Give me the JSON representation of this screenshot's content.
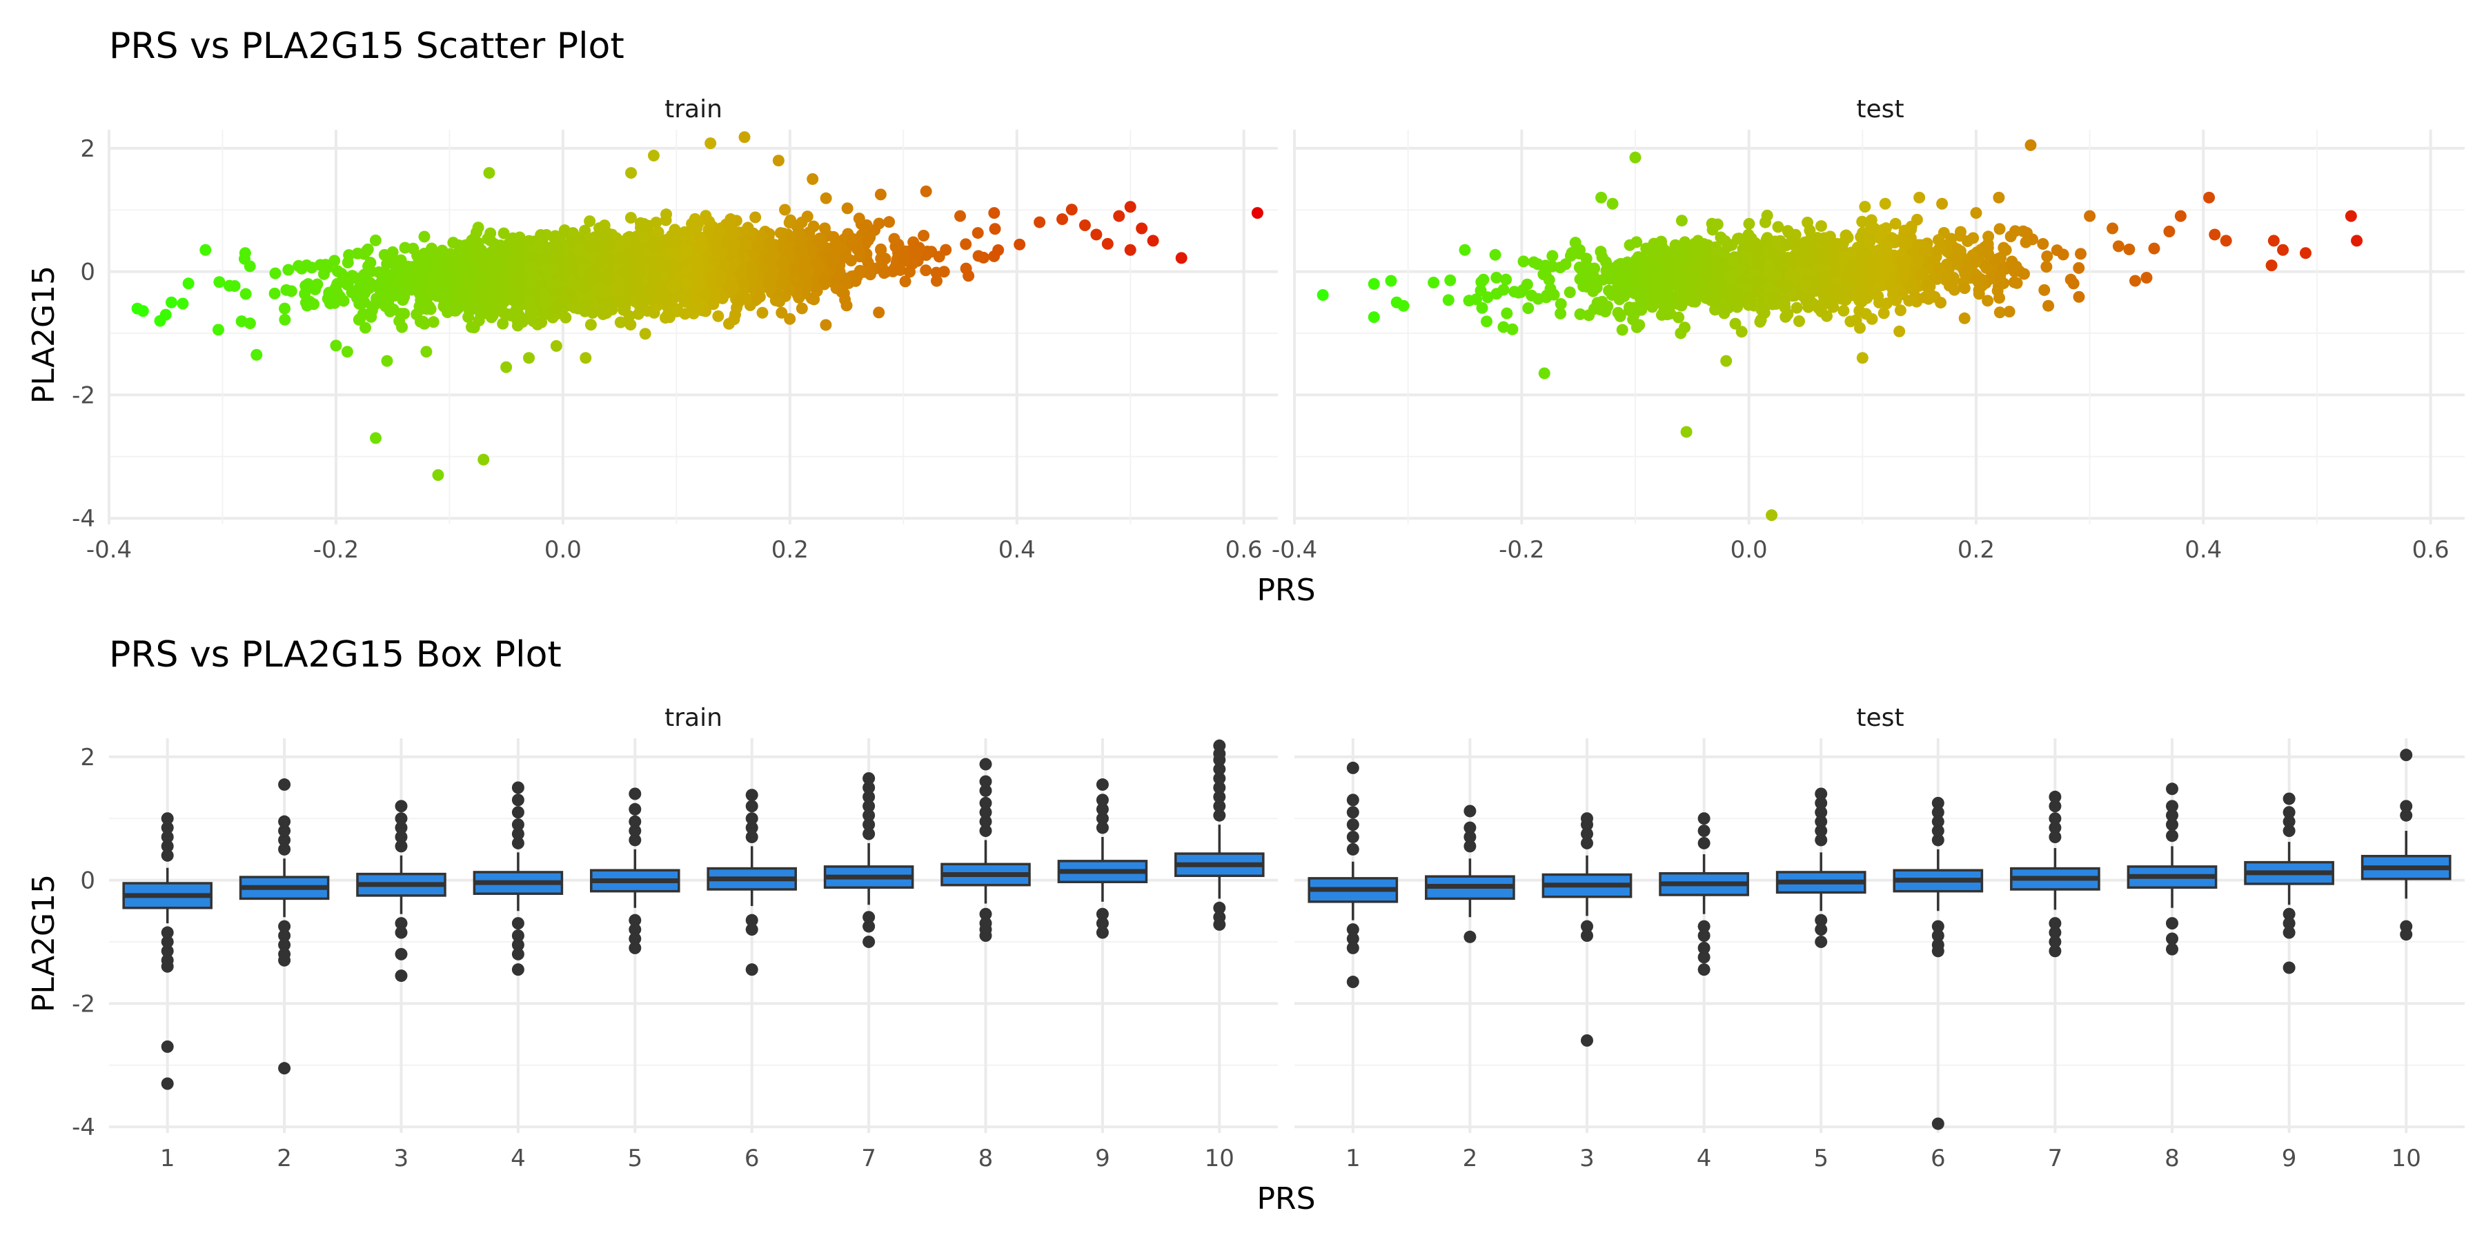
{
  "colors": {
    "grid_major": "#ebebeb",
    "grid_minor": "#f3f3f3",
    "box_fill": "#2b86e2",
    "box_line": "#333333",
    "point_low": "#33ff00",
    "point_mid": "#c8b400",
    "point_high": "#e60000",
    "outlier": "#333333"
  },
  "chart_data": [
    {
      "type": "scatter",
      "title": "PRS vs PLA2G15 Scatter Plot",
      "xlabel": "PRS",
      "ylabel": "PLA2G15",
      "xlim": [
        -0.4,
        0.63
      ],
      "ylim": [
        -4.1,
        2.3
      ],
      "x_ticks": [
        -0.4,
        -0.2,
        0.0,
        0.2,
        0.4,
        0.6
      ],
      "x_tick_labels": [
        "-0.4",
        "-0.2",
        "0.0",
        "0.2",
        "0.4",
        "0.6"
      ],
      "y_ticks": [
        -4,
        -2,
        0,
        2
      ],
      "y_tick_labels": [
        "-4",
        "-2",
        "0",
        "2"
      ],
      "color_scale": {
        "variable": "PRS",
        "low": "#33ff00",
        "mid": "#c8b400",
        "high": "#e60000",
        "range": [
          -0.37,
          0.61
        ]
      },
      "facets": [
        {
          "name": "train",
          "cloud": {
            "n": 3200,
            "x_center": 0.05,
            "x_sd": 0.11,
            "slope": 1.6,
            "y_sd": 0.3
          },
          "points": [
            [
              -0.375,
              -0.6
            ],
            [
              -0.37,
              -0.64
            ],
            [
              -0.355,
              -0.8
            ],
            [
              -0.35,
              -0.7
            ],
            [
              -0.345,
              -0.5
            ],
            [
              -0.335,
              -0.52
            ],
            [
              -0.315,
              0.35
            ],
            [
              -0.28,
              0.3
            ],
            [
              -0.27,
              -1.35
            ],
            [
              -0.2,
              -1.2
            ],
            [
              -0.19,
              -1.3
            ],
            [
              -0.165,
              -2.7
            ],
            [
              -0.155,
              -1.45
            ],
            [
              -0.11,
              -3.3
            ],
            [
              -0.07,
              -3.05
            ],
            [
              -0.065,
              1.6
            ],
            [
              -0.05,
              -1.55
            ],
            [
              -0.03,
              -1.4
            ],
            [
              0.02,
              -1.4
            ],
            [
              0.06,
              1.6
            ],
            [
              0.08,
              1.88
            ],
            [
              0.13,
              2.08
            ],
            [
              0.16,
              2.18
            ],
            [
              0.19,
              1.8
            ],
            [
              0.22,
              1.5
            ],
            [
              0.25,
              -0.55
            ],
            [
              0.28,
              1.25
            ],
            [
              0.32,
              1.3
            ],
            [
              0.35,
              0.9
            ],
            [
              0.38,
              0.95
            ],
            [
              0.42,
              0.8
            ],
            [
              0.44,
              0.85
            ],
            [
              0.46,
              0.75
            ],
            [
              0.47,
              0.6
            ],
            [
              0.48,
              0.45
            ],
            [
              0.49,
              0.9
            ],
            [
              0.5,
              1.05
            ],
            [
              0.51,
              0.7
            ],
            [
              0.52,
              0.5
            ],
            [
              0.5,
              0.35
            ],
            [
              0.545,
              0.22
            ],
            [
              0.612,
              0.95
            ]
          ]
        },
        {
          "name": "test",
          "cloud": {
            "n": 1400,
            "x_center": 0.03,
            "x_sd": 0.1,
            "slope": 1.5,
            "y_sd": 0.3
          },
          "points": [
            [
              -0.375,
              -0.38
            ],
            [
              -0.33,
              -0.2
            ],
            [
              -0.315,
              -0.15
            ],
            [
              -0.31,
              -0.5
            ],
            [
              -0.25,
              0.35
            ],
            [
              -0.24,
              -0.45
            ],
            [
              -0.18,
              -1.65
            ],
            [
              -0.13,
              1.2
            ],
            [
              -0.12,
              1.1
            ],
            [
              -0.1,
              1.85
            ],
            [
              -0.06,
              -1.0
            ],
            [
              -0.055,
              -2.6
            ],
            [
              -0.02,
              -1.45
            ],
            [
              0.02,
              -3.95
            ],
            [
              0.1,
              -1.4
            ],
            [
              0.12,
              1.1
            ],
            [
              0.15,
              1.2
            ],
            [
              0.17,
              1.1
            ],
            [
              0.2,
              0.95
            ],
            [
              0.22,
              1.2
            ],
            [
              0.248,
              2.05
            ],
            [
              0.26,
              -0.3
            ],
            [
              0.3,
              0.9
            ],
            [
              0.32,
              0.7
            ],
            [
              0.34,
              -0.15
            ],
            [
              0.35,
              -0.1
            ],
            [
              0.37,
              0.65
            ],
            [
              0.38,
              0.9
            ],
            [
              0.405,
              1.2
            ],
            [
              0.41,
              0.6
            ],
            [
              0.42,
              0.5
            ],
            [
              0.46,
              0.1
            ],
            [
              0.462,
              0.5
            ],
            [
              0.47,
              0.35
            ],
            [
              0.49,
              0.3
            ],
            [
              0.53,
              0.9
            ],
            [
              0.535,
              0.5
            ]
          ]
        }
      ]
    },
    {
      "type": "box",
      "title": "PRS vs PLA2G15 Box Plot",
      "xlabel": "PRS",
      "ylabel": "PLA2G15",
      "categories": [
        "1",
        "2",
        "3",
        "4",
        "5",
        "6",
        "7",
        "8",
        "9",
        "10"
      ],
      "ylim": [
        -4.1,
        2.3
      ],
      "y_ticks": [
        -4,
        -2,
        0,
        2
      ],
      "y_tick_labels": [
        "-4",
        "-2",
        "0",
        "2"
      ],
      "facets": [
        {
          "name": "train",
          "boxes": [
            {
              "category": "1",
              "q1": -0.45,
              "median": -0.25,
              "q3": -0.05,
              "lower": -0.7,
              "upper": 0.2,
              "outliers": [
                0.4,
                0.55,
                0.7,
                0.85,
                1.0,
                -0.85,
                -1.0,
                -1.15,
                -1.3,
                -1.4,
                -2.7,
                -3.3
              ]
            },
            {
              "category": "2",
              "q1": -0.3,
              "median": -0.12,
              "q3": 0.05,
              "lower": -0.6,
              "upper": 0.35,
              "outliers": [
                0.5,
                0.65,
                0.8,
                0.95,
                1.55,
                -0.75,
                -0.9,
                -1.05,
                -1.2,
                -1.3,
                -3.05
              ]
            },
            {
              "category": "3",
              "q1": -0.25,
              "median": -0.07,
              "q3": 0.1,
              "lower": -0.55,
              "upper": 0.4,
              "outliers": [
                0.55,
                0.7,
                0.85,
                1.0,
                1.2,
                -0.7,
                -0.85,
                -1.2,
                -1.55
              ]
            },
            {
              "category": "4",
              "q1": -0.22,
              "median": -0.04,
              "q3": 0.13,
              "lower": -0.5,
              "upper": 0.45,
              "outliers": [
                0.6,
                0.75,
                0.9,
                1.1,
                1.3,
                1.5,
                -0.7,
                -0.9,
                -1.05,
                -1.2,
                -1.45
              ]
            },
            {
              "category": "5",
              "q1": -0.18,
              "median": -0.01,
              "q3": 0.16,
              "lower": -0.45,
              "upper": 0.5,
              "outliers": [
                0.65,
                0.8,
                0.95,
                1.15,
                1.4,
                -0.65,
                -0.8,
                -0.95,
                -1.1
              ]
            },
            {
              "category": "6",
              "q1": -0.15,
              "median": 0.02,
              "q3": 0.19,
              "lower": -0.42,
              "upper": 0.55,
              "outliers": [
                0.7,
                0.85,
                1.0,
                1.2,
                1.38,
                -0.65,
                -0.8,
                -1.45
              ]
            },
            {
              "category": "7",
              "q1": -0.12,
              "median": 0.05,
              "q3": 0.22,
              "lower": -0.4,
              "upper": 0.6,
              "outliers": [
                0.75,
                0.9,
                1.05,
                1.2,
                1.35,
                1.5,
                1.65,
                -0.6,
                -0.75,
                -1.0
              ]
            },
            {
              "category": "8",
              "q1": -0.08,
              "median": 0.09,
              "q3": 0.26,
              "lower": -0.38,
              "upper": 0.65,
              "outliers": [
                0.8,
                0.95,
                1.1,
                1.25,
                1.45,
                1.6,
                1.88,
                -0.55,
                -0.7,
                -0.8,
                -0.9
              ]
            },
            {
              "category": "9",
              "q1": -0.03,
              "median": 0.14,
              "q3": 0.31,
              "lower": -0.35,
              "upper": 0.7,
              "outliers": [
                0.85,
                1.0,
                1.15,
                1.3,
                1.55,
                -0.55,
                -0.7,
                -0.85
              ]
            },
            {
              "category": "10",
              "q1": 0.07,
              "median": 0.25,
              "q3": 0.43,
              "lower": -0.3,
              "upper": 0.9,
              "outliers": [
                1.05,
                1.2,
                1.35,
                1.5,
                1.65,
                1.8,
                1.95,
                2.05,
                2.18,
                -0.45,
                -0.6,
                -0.72
              ]
            }
          ]
        },
        {
          "name": "test",
          "boxes": [
            {
              "category": "1",
              "q1": -0.35,
              "median": -0.15,
              "q3": 0.03,
              "lower": -0.65,
              "upper": 0.3,
              "outliers": [
                0.5,
                0.7,
                0.9,
                1.1,
                1.3,
                1.82,
                -0.8,
                -0.95,
                -1.1,
                -1.65
              ]
            },
            {
              "category": "2",
              "q1": -0.3,
              "median": -0.1,
              "q3": 0.06,
              "lower": -0.6,
              "upper": 0.35,
              "outliers": [
                0.55,
                0.7,
                0.85,
                1.12,
                -0.92
              ]
            },
            {
              "category": "3",
              "q1": -0.27,
              "median": -0.08,
              "q3": 0.09,
              "lower": -0.58,
              "upper": 0.4,
              "outliers": [
                0.6,
                0.75,
                0.9,
                1.0,
                -0.75,
                -0.9,
                -2.6
              ]
            },
            {
              "category": "4",
              "q1": -0.24,
              "median": -0.06,
              "q3": 0.11,
              "lower": -0.55,
              "upper": 0.42,
              "outliers": [
                0.6,
                0.8,
                1.0,
                -0.75,
                -0.9,
                -1.1,
                -1.25,
                -1.45
              ]
            },
            {
              "category": "5",
              "q1": -0.2,
              "median": -0.03,
              "q3": 0.13,
              "lower": -0.5,
              "upper": 0.45,
              "outliers": [
                0.65,
                0.8,
                0.95,
                1.1,
                1.25,
                1.4,
                -0.65,
                -0.8,
                -1.0
              ]
            },
            {
              "category": "6",
              "q1": -0.18,
              "median": 0.0,
              "q3": 0.16,
              "lower": -0.5,
              "upper": 0.5,
              "outliers": [
                0.65,
                0.8,
                0.95,
                1.1,
                1.25,
                -0.75,
                -0.9,
                -1.05,
                -1.15,
                -3.95
              ]
            },
            {
              "category": "7",
              "q1": -0.15,
              "median": 0.03,
              "q3": 0.19,
              "lower": -0.48,
              "upper": 0.52,
              "outliers": [
                0.7,
                0.85,
                1.0,
                1.2,
                1.35,
                -0.7,
                -0.85,
                -1.0,
                -1.15
              ]
            },
            {
              "category": "8",
              "q1": -0.12,
              "median": 0.06,
              "q3": 0.22,
              "lower": -0.45,
              "upper": 0.55,
              "outliers": [
                0.72,
                0.9,
                1.05,
                1.2,
                1.48,
                -0.7,
                -0.95,
                -1.12
              ]
            },
            {
              "category": "9",
              "q1": -0.06,
              "median": 0.12,
              "q3": 0.29,
              "lower": -0.4,
              "upper": 0.62,
              "outliers": [
                0.8,
                0.95,
                1.1,
                1.32,
                -0.55,
                -0.7,
                -0.85,
                -1.42
              ]
            },
            {
              "category": "10",
              "q1": 0.02,
              "median": 0.2,
              "q3": 0.39,
              "lower": -0.3,
              "upper": 0.8,
              "outliers": [
                1.05,
                1.2,
                2.03,
                -0.75,
                -0.88
              ]
            }
          ]
        }
      ]
    }
  ]
}
